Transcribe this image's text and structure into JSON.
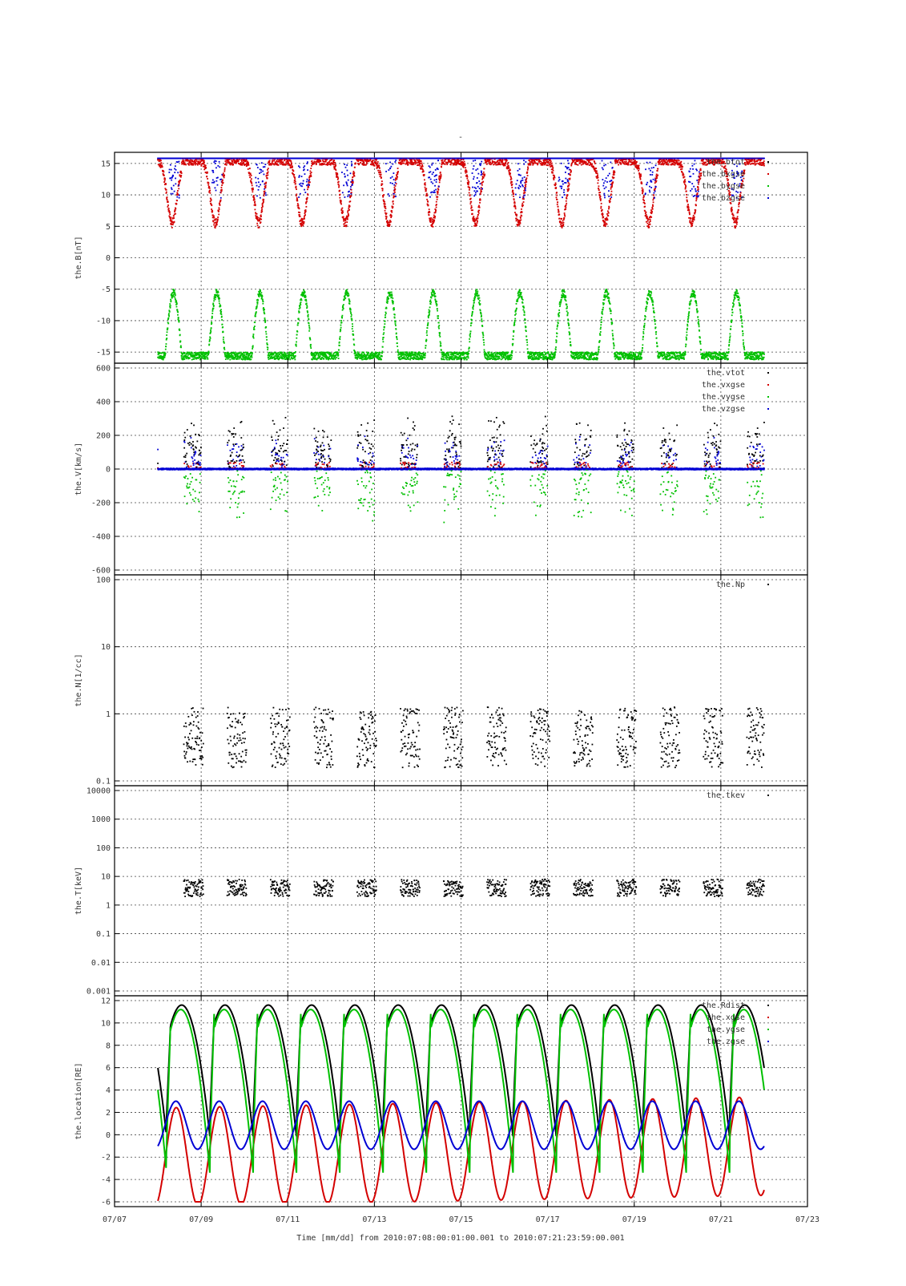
{
  "figure": {
    "top_title": "-",
    "xlabel": "Time [mm/dd]  from 2010:07:08:00:01:00.001  to  2010:07:21:23:59:00.001",
    "x_ticks": [
      "07/07",
      "07/09",
      "07/11",
      "07/13",
      "07/15",
      "07/17",
      "07/19",
      "07/21",
      "07/23"
    ]
  },
  "chart_data": [
    {
      "type": "scatter",
      "ylabel": "the.B[nT]",
      "ylim": [
        -16,
        16
      ],
      "y_scale": "linear",
      "y_ticks": [
        "15",
        "10",
        "5",
        "0",
        "-5",
        "-10",
        "-15"
      ],
      "grid": true,
      "legend_position": "top-right",
      "series": [
        {
          "name": "the.btot",
          "color": "#000000"
        },
        {
          "name": "the.bxgse",
          "color": "#d40000"
        },
        {
          "name": "the.bygse",
          "color": "#00c000"
        },
        {
          "name": "the.bzgse",
          "color": "#0000d4"
        }
      ]
    },
    {
      "type": "scatter",
      "ylabel": "the.V[km/s]",
      "ylim": [
        -600,
        600
      ],
      "y_scale": "linear",
      "y_ticks": [
        "600",
        "400",
        "200",
        "0",
        "-200",
        "-400",
        "-600"
      ],
      "grid": true,
      "legend_position": "top-right",
      "series": [
        {
          "name": "the.vtot",
          "color": "#000000"
        },
        {
          "name": "the.vxgse",
          "color": "#d40000"
        },
        {
          "name": "the.vygse",
          "color": "#00c000"
        },
        {
          "name": "the.vzgse",
          "color": "#0000d4"
        }
      ]
    },
    {
      "type": "scatter",
      "ylabel": "the.N[1/cc]",
      "ylim": [
        0.1,
        100
      ],
      "y_scale": "log",
      "y_ticks": [
        "100",
        "10",
        "1",
        "0.1"
      ],
      "grid": true,
      "legend_position": "top-right",
      "series": [
        {
          "name": "the.Np",
          "color": "#000000"
        }
      ]
    },
    {
      "type": "scatter",
      "ylabel": "the.T[keV]",
      "ylim": [
        0.001,
        10000
      ],
      "y_scale": "log",
      "y_ticks": [
        "10000",
        "1000",
        "100",
        "10",
        "1",
        "0.1",
        "0.01",
        "0.001"
      ],
      "grid": true,
      "legend_position": "top-right",
      "series": [
        {
          "name": "the.tkev",
          "color": "#000000"
        }
      ]
    },
    {
      "type": "line",
      "ylabel": "the.location[RE]",
      "ylim": [
        -6,
        12
      ],
      "y_scale": "linear",
      "y_ticks": [
        "12",
        "10",
        "8",
        "6",
        "4",
        "2",
        "0",
        "-2",
        "-4",
        "-6"
      ],
      "grid": true,
      "legend_position": "top-right",
      "series": [
        {
          "name": "the.Rdist",
          "color": "#000000"
        },
        {
          "name": "the.xgse",
          "color": "#d40000"
        },
        {
          "name": "the.ygse",
          "color": "#00c000"
        },
        {
          "name": "the.zgse",
          "color": "#0000d4"
        }
      ]
    }
  ]
}
